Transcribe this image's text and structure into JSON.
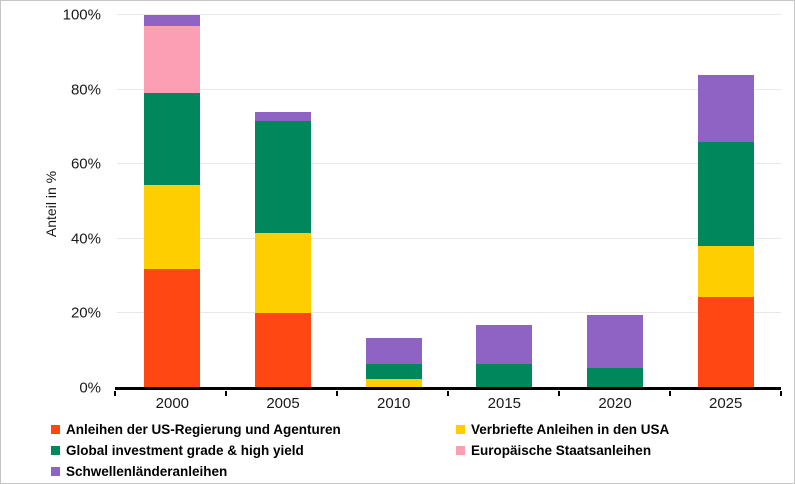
{
  "chart_data": {
    "type": "bar",
    "stacked": true,
    "orientation": "vertical",
    "title": "",
    "xlabel": "",
    "ylabel": "Anteil in %",
    "categories": [
      "2000",
      "2005",
      "2010",
      "2015",
      "2020",
      "2025"
    ],
    "series": [
      {
        "name": "Anleihen der US-Regierung und Agenturen",
        "color": "#FF4713",
        "values": [
          32,
          20,
          0,
          0,
          0,
          24.5
        ]
      },
      {
        "name": "Verbriefte Anleihen in den USA",
        "color": "#FFCE00",
        "values": [
          22.5,
          21.5,
          2.5,
          0,
          0,
          13.5
        ]
      },
      {
        "name": "Global investment grade & high yield",
        "color": "#00875B",
        "values": [
          24.5,
          30,
          4,
          6.5,
          5.5,
          28
        ]
      },
      {
        "name": "Europäische Staatsanleihen",
        "color": "#FC9FB5",
        "values": [
          18,
          0,
          0,
          0,
          0,
          0
        ]
      },
      {
        "name": "Schwellenländeranleihen",
        "color": "#8F63C3",
        "values": [
          3,
          2.5,
          7,
          10.5,
          14,
          18
        ]
      }
    ],
    "stack_totals": [
      100,
      74,
      13.5,
      17,
      19.5,
      84
    ],
    "yticks": [
      "0%",
      "20%",
      "40%",
      "60%",
      "80%",
      "100%"
    ],
    "ylim": [
      0,
      100
    ],
    "grid": true,
    "axis_color": "#000000",
    "gridline_color": "#e8e8e8",
    "legend_position": "bottom",
    "legend_columns": 2
  }
}
